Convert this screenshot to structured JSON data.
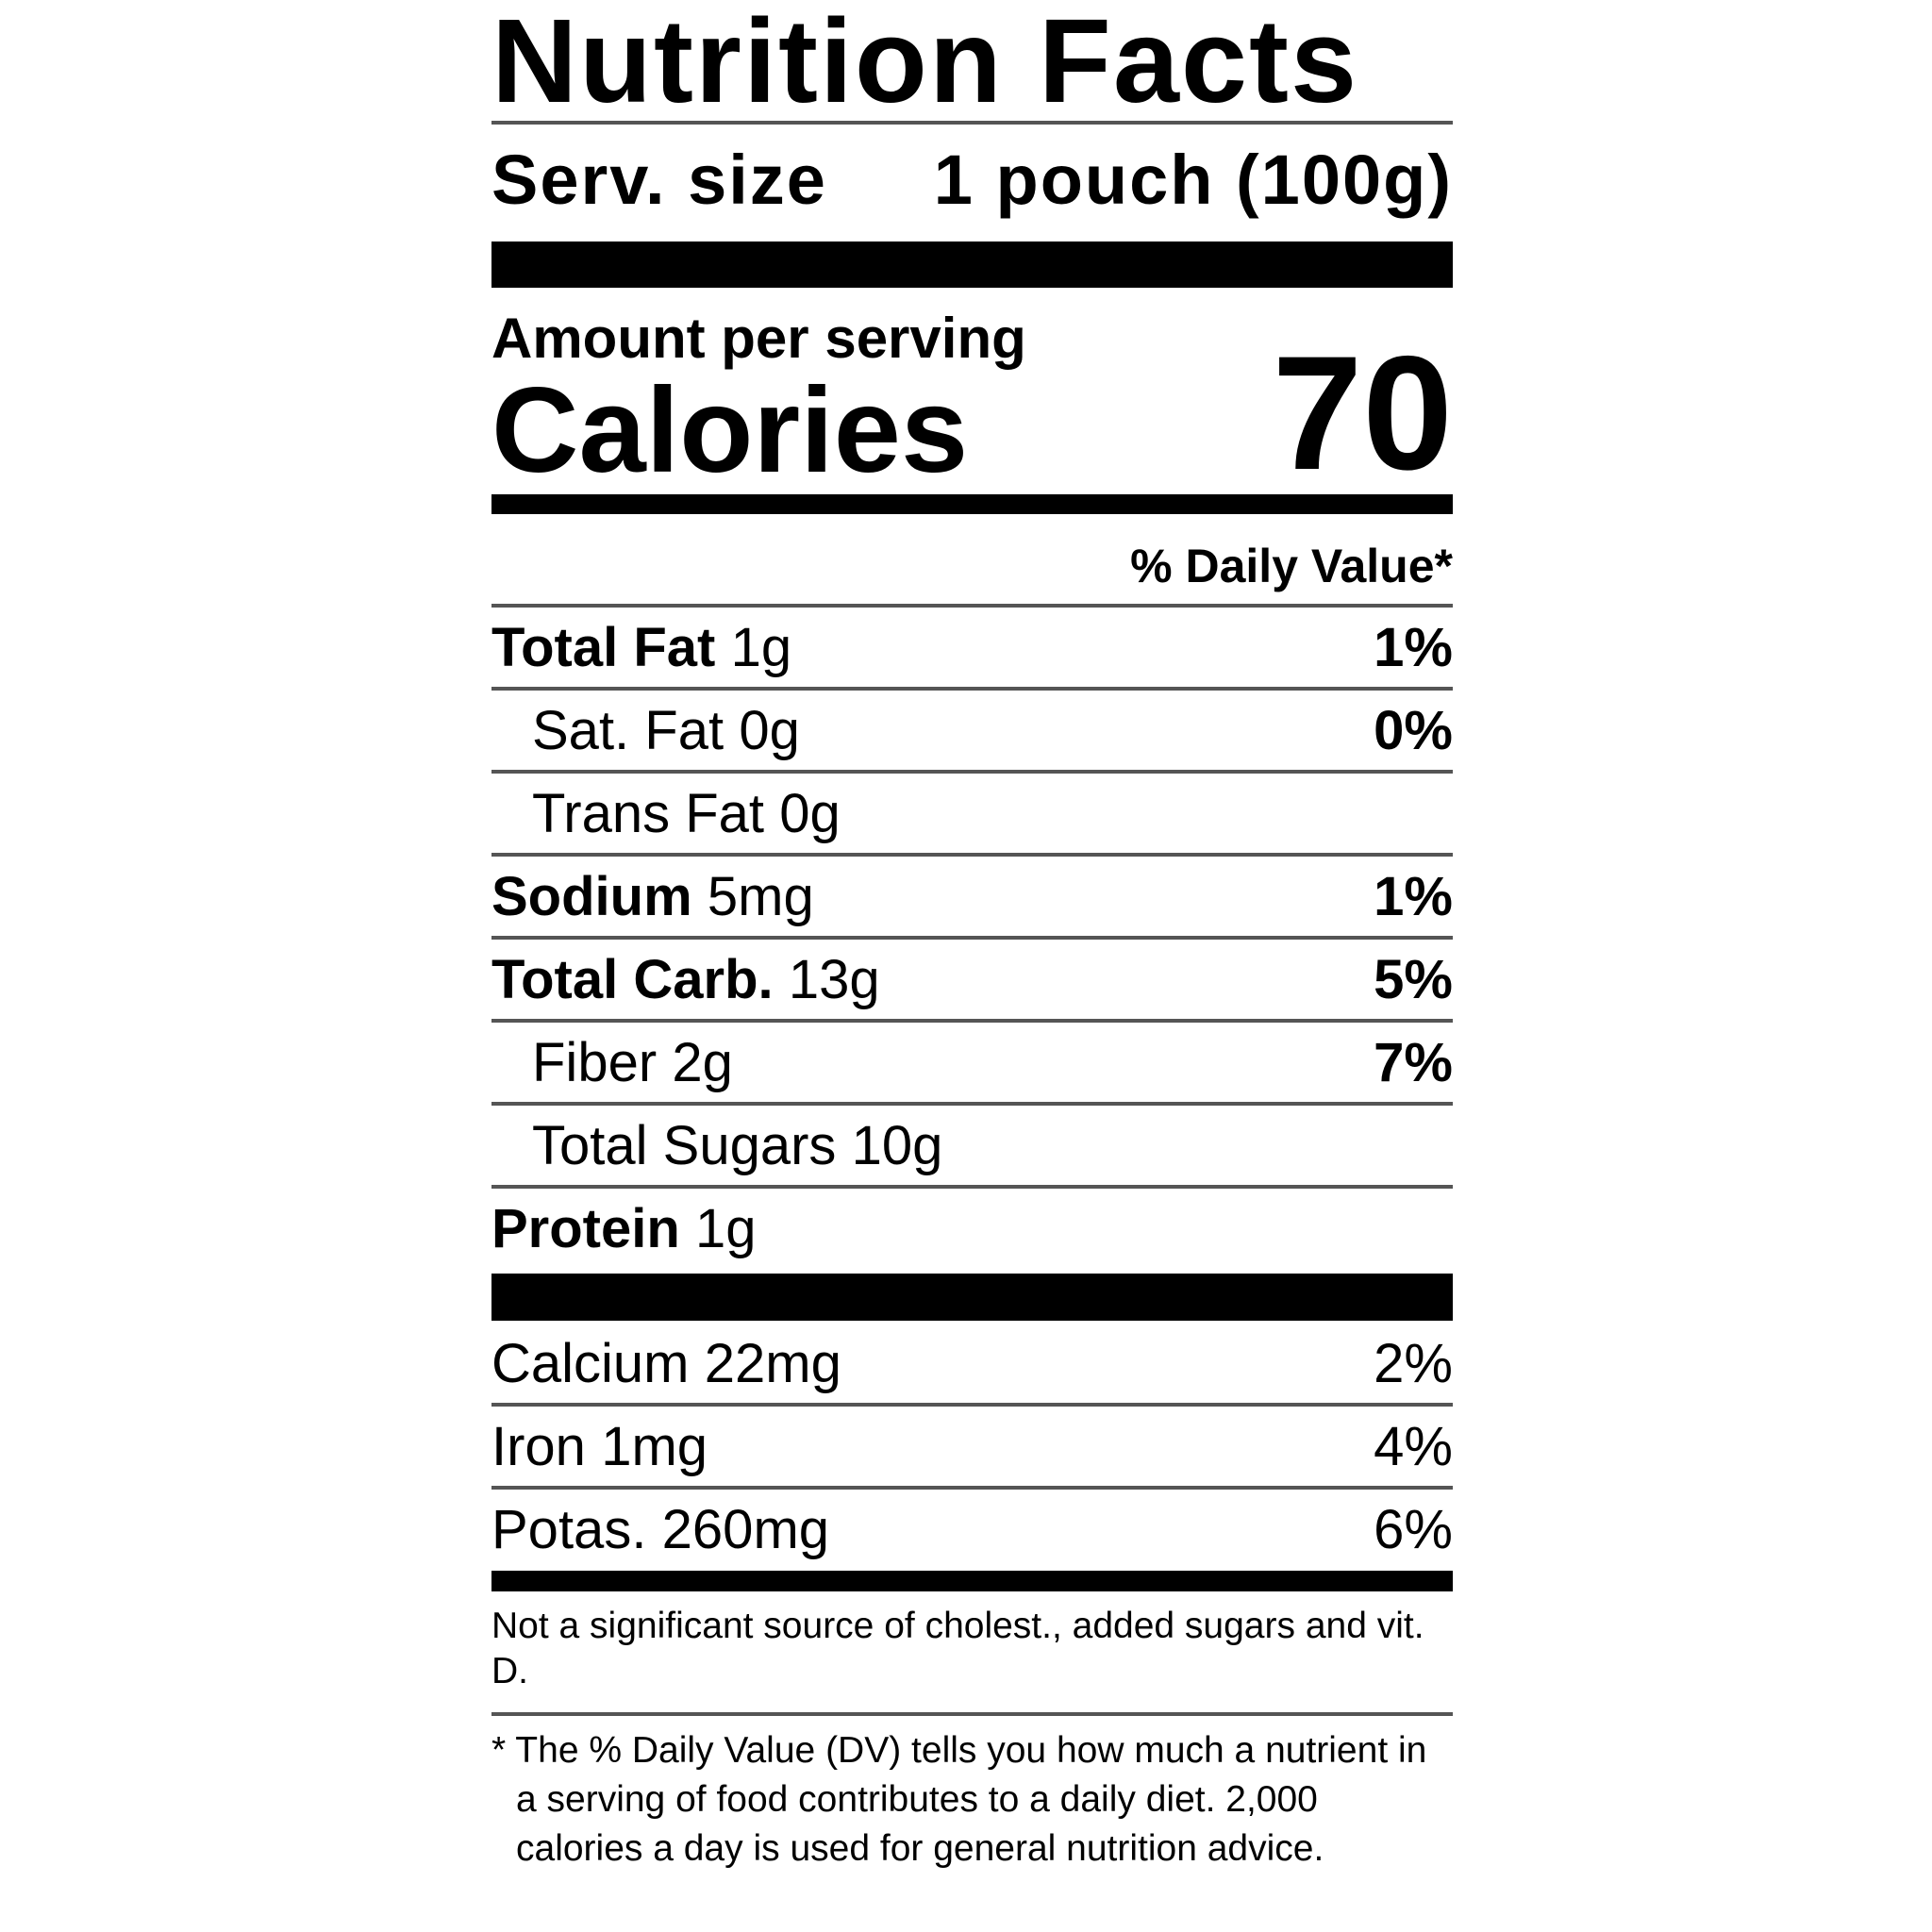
{
  "header": {
    "title": "Nutrition Facts",
    "serving_size_label": "Serv. size",
    "serving_size": "1 pouch (100g)"
  },
  "calories": {
    "amount_label": "Amount per serving",
    "label": "Calories",
    "value": 70
  },
  "daily_value_header": "% Daily Value*",
  "nutrients": [
    {
      "name": "Total Fat",
      "amount": "1g",
      "dv": "1%",
      "bold": true,
      "indent": false
    },
    {
      "name": "Sat. Fat",
      "amount": "0g",
      "dv": "0%",
      "bold": false,
      "indent": true
    },
    {
      "name": "Trans Fat",
      "amount": "0g",
      "bold": false,
      "indent": true
    },
    {
      "name": "Sodium",
      "amount": "5mg",
      "dv": "1%",
      "bold": true,
      "indent": false
    },
    {
      "name": "Total Carb.",
      "amount": "13g",
      "dv": "5%",
      "bold": true,
      "indent": false
    },
    {
      "name": "Fiber",
      "amount": "2g",
      "dv": "7%",
      "bold": false,
      "indent": true
    },
    {
      "name": "Total Sugars",
      "amount": "10g",
      "bold": false,
      "indent": true
    },
    {
      "name": "Protein",
      "amount": "1g",
      "bold": true,
      "indent": false
    }
  ],
  "minerals": [
    {
      "name": "Calcium",
      "amount": "22mg",
      "dv": "2%"
    },
    {
      "name": "Iron",
      "amount": "1mg",
      "dv": "4%"
    },
    {
      "name": "Potas.",
      "amount": "260mg",
      "dv": "6%"
    }
  ],
  "footnotes": [
    "Not a significant source of cholest., added sugars and vit. D.",
    "* The % Daily Value (DV) tells you how much a nutrient in a serving of food contributes to a daily diet. 2,000 calories a day is used for general nutrition advice."
  ]
}
